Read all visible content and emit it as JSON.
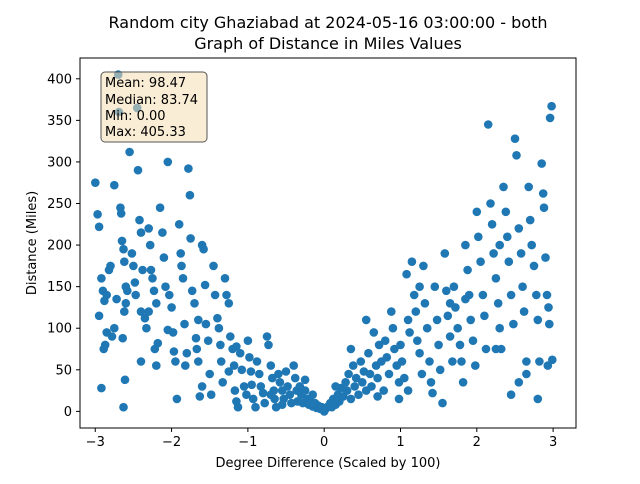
{
  "chart_data": {
    "type": "scatter",
    "title": "Random city Ghaziabad at 2024-05-16 03:00:00  - both",
    "subtitle": "Graph of Distance in Miles Values",
    "xlabel": "Degree Difference (Scaled by 100)",
    "ylabel": "Distance (Miles)",
    "xlim": [
      -3.2,
      3.3
    ],
    "ylim": [
      -20,
      425
    ],
    "xticks": [
      -3,
      -2,
      -1,
      0,
      1,
      2,
      3
    ],
    "xtick_labels": [
      "−3",
      "−2",
      "−1",
      "0",
      "1",
      "2",
      "3"
    ],
    "yticks": [
      0,
      50,
      100,
      150,
      200,
      250,
      300,
      350,
      400
    ],
    "ytick_labels": [
      "0",
      "50",
      "100",
      "150",
      "200",
      "250",
      "300",
      "350",
      "400"
    ],
    "grid": false,
    "point_color": "#1f77b4",
    "stats_box": {
      "lines": [
        "Mean: 98.47",
        "Median: 83.74",
        "Min: 0.00",
        "Max: 405.33"
      ],
      "placement": "top-left",
      "facecolor": "#f5deb3",
      "edgecolor": "#555555"
    },
    "points": [
      [
        -3.0,
        275
      ],
      [
        -2.97,
        237
      ],
      [
        -2.95,
        222
      ],
      [
        -2.92,
        160
      ],
      [
        -2.9,
        145
      ],
      [
        -2.88,
        133
      ],
      [
        -2.95,
        115
      ],
      [
        -2.85,
        95
      ],
      [
        -2.87,
        80
      ],
      [
        -2.89,
        75
      ],
      [
        -2.92,
        28
      ],
      [
        -2.8,
        175
      ],
      [
        -2.82,
        170
      ],
      [
        -2.78,
        90
      ],
      [
        -2.75,
        272
      ],
      [
        -2.72,
        135
      ],
      [
        -2.7,
        405
      ],
      [
        -2.69,
        360
      ],
      [
        -2.67,
        245
      ],
      [
        -2.66,
        238
      ],
      [
        -2.65,
        205
      ],
      [
        -2.63,
        195
      ],
      [
        -2.62,
        180
      ],
      [
        -2.6,
        150
      ],
      [
        -2.58,
        145
      ],
      [
        -2.6,
        130
      ],
      [
        -2.62,
        120
      ],
      [
        -2.64,
        88
      ],
      [
        -2.61,
        38
      ],
      [
        -2.63,
        5
      ],
      [
        -2.55,
        312
      ],
      [
        -2.52,
        190
      ],
      [
        -2.5,
        175
      ],
      [
        -2.48,
        155
      ],
      [
        -2.47,
        140
      ],
      [
        -2.45,
        365
      ],
      [
        -2.44,
        290
      ],
      [
        -2.42,
        230
      ],
      [
        -2.4,
        215
      ],
      [
        -2.38,
        170
      ],
      [
        -2.4,
        120
      ],
      [
        -2.35,
        112
      ],
      [
        -2.33,
        100
      ],
      [
        -2.3,
        220
      ],
      [
        -2.28,
        200
      ],
      [
        -2.27,
        170
      ],
      [
        -2.25,
        160
      ],
      [
        -2.23,
        145
      ],
      [
        -2.2,
        130
      ],
      [
        -2.22,
        75
      ],
      [
        -2.18,
        82
      ],
      [
        -2.2,
        55
      ],
      [
        -2.15,
        245
      ],
      [
        -2.12,
        215
      ],
      [
        -2.1,
        185
      ],
      [
        -2.08,
        150
      ],
      [
        -2.05,
        300
      ],
      [
        -2.03,
        140
      ],
      [
        -2.0,
        125
      ],
      [
        -1.98,
        95
      ],
      [
        -1.97,
        72
      ],
      [
        -1.95,
        60
      ],
      [
        -1.93,
        15
      ],
      [
        -1.9,
        225
      ],
      [
        -1.88,
        190
      ],
      [
        -1.87,
        175
      ],
      [
        -1.85,
        160
      ],
      [
        -1.83,
        105
      ],
      [
        -1.8,
        70
      ],
      [
        -1.82,
        55
      ],
      [
        -1.78,
        292
      ],
      [
        -1.76,
        260
      ],
      [
        -1.75,
        208
      ],
      [
        -1.73,
        145
      ],
      [
        -1.7,
        130
      ],
      [
        -1.68,
        88
      ],
      [
        -1.67,
        75
      ],
      [
        -1.65,
        60
      ],
      [
        -1.63,
        18
      ],
      [
        -1.6,
        200
      ],
      [
        -1.58,
        195
      ],
      [
        -1.56,
        152
      ],
      [
        -1.55,
        105
      ],
      [
        -1.52,
        85
      ],
      [
        -1.5,
        45
      ],
      [
        -1.48,
        20
      ],
      [
        -1.45,
        175
      ],
      [
        -1.43,
        140
      ],
      [
        -1.4,
        112
      ],
      [
        -1.38,
        100
      ],
      [
        -1.36,
        80
      ],
      [
        -1.35,
        60
      ],
      [
        -1.33,
        35
      ],
      [
        -1.3,
        160
      ],
      [
        -1.28,
        140
      ],
      [
        -1.25,
        130
      ],
      [
        -1.23,
        90
      ],
      [
        -1.2,
        75
      ],
      [
        -1.18,
        55
      ],
      [
        -1.17,
        25
      ],
      [
        -1.15,
        12
      ],
      [
        -1.13,
        5
      ],
      [
        -1.1,
        70
      ],
      [
        -1.08,
        50
      ],
      [
        -1.05,
        30
      ],
      [
        -1.02,
        20
      ],
      [
        -1.0,
        85
      ],
      [
        -0.98,
        65
      ],
      [
        -0.96,
        48
      ],
      [
        -0.95,
        32
      ],
      [
        -0.93,
        15
      ],
      [
        -0.9,
        5
      ],
      [
        -0.88,
        60
      ],
      [
        -0.85,
        45
      ],
      [
        -0.83,
        30
      ],
      [
        -0.8,
        22
      ],
      [
        -0.78,
        10
      ],
      [
        -0.75,
        90
      ],
      [
        -0.73,
        80
      ],
      [
        -0.7,
        55
      ],
      [
        -0.68,
        40
      ],
      [
        -0.66,
        25
      ],
      [
        -0.65,
        15
      ],
      [
        -0.63,
        5
      ],
      [
        -0.6,
        45
      ],
      [
        -0.58,
        35
      ],
      [
        -0.55,
        25
      ],
      [
        -0.53,
        15
      ],
      [
        -0.5,
        48
      ],
      [
        -0.48,
        30
      ],
      [
        -0.45,
        20
      ],
      [
        -0.43,
        10
      ],
      [
        -0.4,
        55
      ],
      [
        -0.38,
        40
      ],
      [
        -0.36,
        25
      ],
      [
        -0.35,
        12
      ],
      [
        -0.32,
        30
      ],
      [
        -0.3,
        20
      ],
      [
        -0.28,
        10
      ],
      [
        -0.25,
        25
      ],
      [
        -0.22,
        15
      ],
      [
        -0.2,
        8
      ],
      [
        -0.18,
        12
      ],
      [
        -0.15,
        6
      ],
      [
        -0.12,
        10
      ],
      [
        -0.1,
        4
      ],
      [
        -0.08,
        7
      ],
      [
        -0.05,
        3
      ],
      [
        -0.03,
        5
      ],
      [
        0.0,
        0
      ],
      [
        0.02,
        3
      ],
      [
        0.05,
        6
      ],
      [
        0.08,
        10
      ],
      [
        0.1,
        5
      ],
      [
        0.12,
        15
      ],
      [
        0.15,
        8
      ],
      [
        0.18,
        20
      ],
      [
        0.2,
        12
      ],
      [
        0.22,
        28
      ],
      [
        0.25,
        18
      ],
      [
        0.28,
        35
      ],
      [
        0.3,
        25
      ],
      [
        0.32,
        45
      ],
      [
        0.35,
        15
      ],
      [
        0.38,
        55
      ],
      [
        0.4,
        30
      ],
      [
        0.42,
        40
      ],
      [
        0.45,
        20
      ],
      [
        0.48,
        60
      ],
      [
        0.5,
        35
      ],
      [
        0.52,
        48
      ],
      [
        0.55,
        25
      ],
      [
        0.58,
        70
      ],
      [
        0.6,
        45
      ],
      [
        0.62,
        30
      ],
      [
        0.65,
        95
      ],
      [
        0.68,
        55
      ],
      [
        0.7,
        40
      ],
      [
        0.72,
        80
      ],
      [
        0.75,
        60
      ],
      [
        0.78,
        25
      ],
      [
        0.8,
        85
      ],
      [
        0.82,
        65
      ],
      [
        0.85,
        45
      ],
      [
        0.88,
        120
      ],
      [
        0.9,
        100
      ],
      [
        0.92,
        75
      ],
      [
        0.95,
        55
      ],
      [
        0.98,
        35
      ],
      [
        1.0,
        80
      ],
      [
        1.02,
        60
      ],
      [
        1.05,
        40
      ],
      [
        1.08,
        165
      ],
      [
        1.1,
        110
      ],
      [
        1.12,
        95
      ],
      [
        1.15,
        180
      ],
      [
        1.18,
        140
      ],
      [
        1.2,
        120
      ],
      [
        1.22,
        85
      ],
      [
        1.25,
        70
      ],
      [
        1.28,
        45
      ],
      [
        1.3,
        175
      ],
      [
        1.32,
        130
      ],
      [
        1.35,
        100
      ],
      [
        1.38,
        60
      ],
      [
        1.4,
        35
      ],
      [
        1.42,
        22
      ],
      [
        1.45,
        150
      ],
      [
        1.48,
        110
      ],
      [
        1.5,
        80
      ],
      [
        1.52,
        50
      ],
      [
        1.55,
        10
      ],
      [
        1.58,
        190
      ],
      [
        1.6,
        145
      ],
      [
        1.62,
        115
      ],
      [
        1.65,
        90
      ],
      [
        1.68,
        60
      ],
      [
        1.7,
        150
      ],
      [
        1.72,
        125
      ],
      [
        1.75,
        100
      ],
      [
        1.78,
        80
      ],
      [
        1.8,
        60
      ],
      [
        1.82,
        35
      ],
      [
        1.85,
        200
      ],
      [
        1.88,
        170
      ],
      [
        1.9,
        140
      ],
      [
        1.92,
        110
      ],
      [
        1.95,
        85
      ],
      [
        1.98,
        55
      ],
      [
        2.0,
        240
      ],
      [
        2.02,
        210
      ],
      [
        2.05,
        180
      ],
      [
        2.08,
        140
      ],
      [
        2.1,
        115
      ],
      [
        2.12,
        75
      ],
      [
        2.15,
        345
      ],
      [
        2.18,
        250
      ],
      [
        2.2,
        225
      ],
      [
        2.22,
        190
      ],
      [
        2.25,
        160
      ],
      [
        2.28,
        130
      ],
      [
        2.3,
        100
      ],
      [
        2.32,
        75
      ],
      [
        2.35,
        270
      ],
      [
        2.38,
        240
      ],
      [
        2.4,
        210
      ],
      [
        2.42,
        180
      ],
      [
        2.45,
        140
      ],
      [
        2.48,
        105
      ],
      [
        2.5,
        328
      ],
      [
        2.52,
        308
      ],
      [
        2.55,
        220
      ],
      [
        2.58,
        190
      ],
      [
        2.6,
        150
      ],
      [
        2.62,
        120
      ],
      [
        2.65,
        60
      ],
      [
        2.68,
        270
      ],
      [
        2.7,
        230
      ],
      [
        2.72,
        200
      ],
      [
        2.75,
        175
      ],
      [
        2.78,
        140
      ],
      [
        2.8,
        110
      ],
      [
        2.82,
        60
      ],
      [
        2.85,
        298
      ],
      [
        2.87,
        262
      ],
      [
        2.88,
        245
      ],
      [
        2.9,
        185
      ],
      [
        2.92,
        140
      ],
      [
        2.94,
        125
      ],
      [
        2.95,
        105
      ],
      [
        2.93,
        55
      ],
      [
        2.96,
        353
      ],
      [
        2.98,
        367
      ],
      [
        2.99,
        62
      ],
      [
        2.45,
        20
      ],
      [
        2.55,
        35
      ],
      [
        2.25,
        75
      ],
      [
        1.1,
        25
      ],
      [
        0.98,
        15
      ],
      [
        -2.75,
        100
      ],
      [
        -2.4,
        60
      ],
      [
        -2.05,
        98
      ],
      [
        -1.15,
        78
      ],
      [
        -1.6,
        30
      ],
      [
        -2.85,
        140
      ],
      [
        2.8,
        15
      ],
      [
        2.65,
        45
      ],
      [
        1.85,
        135
      ],
      [
        0.55,
        110
      ],
      [
        -0.55,
        8
      ],
      [
        -0.25,
        38
      ],
      [
        0.35,
        75
      ],
      [
        0.15,
        30
      ],
      [
        -0.15,
        20
      ],
      [
        -1.65,
        110
      ],
      [
        1.65,
        130
      ],
      [
        -2.3,
        120
      ],
      [
        2.3,
        200
      ],
      [
        -1.25,
        48
      ],
      [
        1.25,
        150
      ],
      [
        -0.7,
        20
      ],
      [
        0.7,
        18
      ]
    ]
  }
}
